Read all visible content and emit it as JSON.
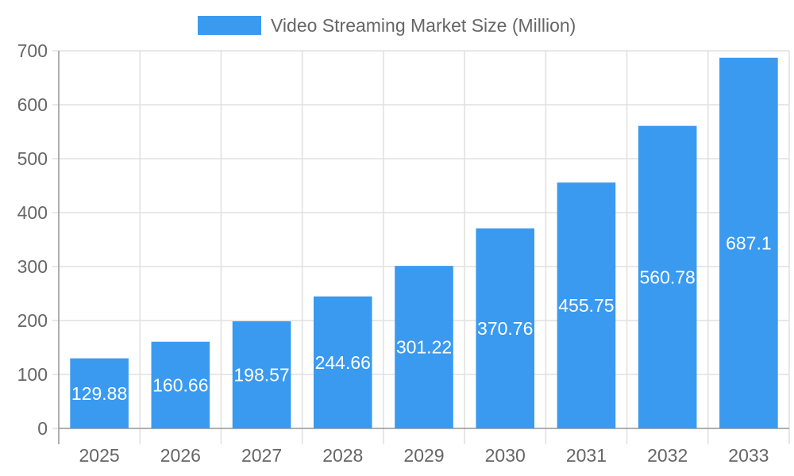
{
  "chart_data": {
    "type": "bar",
    "title": "",
    "xlabel": "",
    "ylabel": "",
    "categories": [
      "2025",
      "2026",
      "2027",
      "2028",
      "2029",
      "2030",
      "2031",
      "2032",
      "2033"
    ],
    "series": [
      {
        "name": "Video Streaming Market Size (Million)",
        "values": [
          129.88,
          160.66,
          198.57,
          244.66,
          301.22,
          370.76,
          455.75,
          560.78,
          687.1
        ],
        "data_labels": [
          "129.88",
          "160.66",
          "198.57",
          "244.66",
          "301.22",
          "370.76",
          "455.75",
          "560.78",
          "687.1"
        ]
      }
    ],
    "ylim": [
      0,
      700
    ],
    "y_ticks": [
      "0",
      "100",
      "200",
      "300",
      "400",
      "500",
      "600",
      "700"
    ],
    "grid": true,
    "legend_position": "top-center",
    "colors": {
      "bar": "#3a9af0",
      "grid": "#e0e0e0",
      "text": "#666666",
      "label": "#ffffff"
    }
  }
}
